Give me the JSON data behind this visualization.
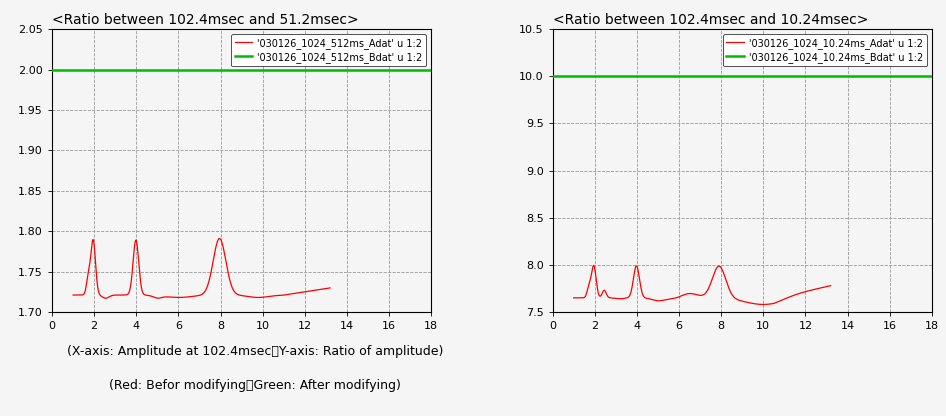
{
  "plot1": {
    "title": "<Ratio between 102.4msec and 51.2msec>",
    "legend1": "'030126_1024_512ms_Adat' u 1:2",
    "legend2": "'030126_1024_512ms_Bdat' u 1:2",
    "xlim": [
      0,
      18
    ],
    "ylim": [
      1.7,
      2.05
    ],
    "yticks": [
      1.7,
      1.75,
      1.8,
      1.85,
      1.9,
      1.95,
      2.0,
      2.05
    ],
    "xticks": [
      0,
      2,
      4,
      6,
      8,
      10,
      12,
      14,
      16,
      18
    ],
    "green_y": 2.0,
    "red_color": "#ff0000",
    "green_color": "#00bb00"
  },
  "plot2": {
    "title": "<Ratio between 102.4msec and 10.24msec>",
    "legend1": "'030126_1024_10.24ms_Adat' u 1:2",
    "legend2": "'030126_1024_10.24ms_Bdat' u 1:2",
    "xlim": [
      0,
      18
    ],
    "ylim": [
      7.5,
      10.5
    ],
    "yticks": [
      7.5,
      8.0,
      8.5,
      9.0,
      9.5,
      10.0,
      10.5
    ],
    "xticks": [
      0,
      2,
      4,
      6,
      8,
      10,
      12,
      14,
      16,
      18
    ],
    "green_y": 10.0,
    "red_color": "#ff0000",
    "green_color": "#00bb00"
  },
  "caption_line1": "(X-axis: Amplitude at 102.4msec、Y-axis: Ratio of amplitude)",
  "caption_line2": "(Red: Befor modifying、Green: After modifying)",
  "bg_color": "#f0f0f0",
  "axis_color": "#000000",
  "grid_color": "#999999",
  "grid_style": "--",
  "title_fontsize": 10,
  "legend_fontsize": 7,
  "tick_fontsize": 8,
  "caption_fontsize": 9
}
